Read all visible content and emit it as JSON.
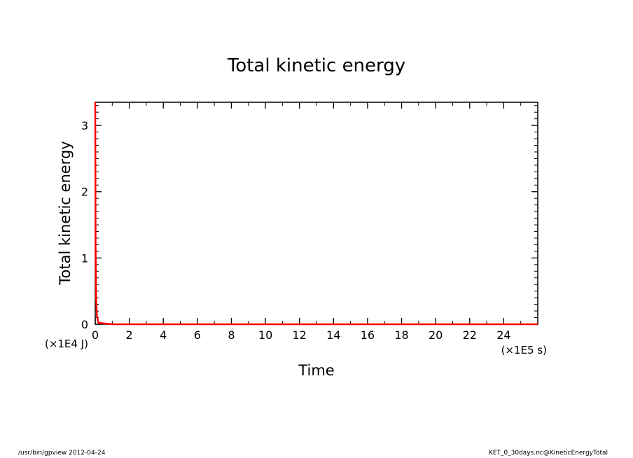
{
  "chart_data": {
    "type": "line",
    "title": "Total kinetic energy",
    "xlabel": "Time",
    "ylabel": "Total kinetic energy",
    "x_unit": "(×1E5 s)",
    "y_unit": "(×1E4 J)",
    "xlim": [
      0,
      26
    ],
    "ylim": [
      0,
      3.35
    ],
    "x_ticks": [
      0,
      2,
      4,
      6,
      8,
      10,
      12,
      14,
      16,
      18,
      20,
      22,
      24
    ],
    "y_ticks": [
      0,
      1,
      2,
      3
    ],
    "grid": false,
    "series": [
      {
        "color": "#ff0000",
        "x": [
          0,
          0.02,
          0.05,
          0.1,
          0.2,
          1,
          5,
          10,
          15,
          20,
          26
        ],
        "y": [
          3.35,
          1.2,
          0.4,
          0.12,
          0.02,
          0,
          0,
          0,
          0,
          0,
          0
        ]
      }
    ]
  },
  "footer": {
    "left": "/usr/bin/gpview  2012-04-24",
    "right": "KET_0_30days.nc@KineticEnergyTotal"
  }
}
